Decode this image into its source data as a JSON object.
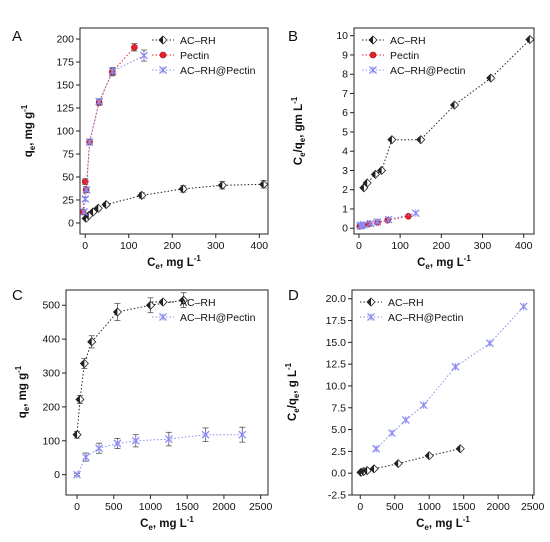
{
  "figure": {
    "panels": [
      {
        "label": "A",
        "chart_data": {
          "type": "scatter",
          "xlabel": "C",
          "xlabel_sub": "e",
          "xlabel_unit": ", mg L",
          "xlabel_sup": "-1",
          "ylabel": "q",
          "ylabel_sub": "e",
          "ylabel_unit": ", mg g",
          "ylabel_sup": "-1",
          "xlim": [
            -12,
            420
          ],
          "ylim": [
            -12,
            212
          ],
          "xticks": [
            0,
            100,
            200,
            300,
            400
          ],
          "yticks": [
            0,
            25,
            50,
            75,
            100,
            125,
            150,
            175,
            200
          ],
          "legend_position": "top-right",
          "series": [
            {
              "name": "AC–RH",
              "color": "#222222",
              "marker": "diamond-half",
              "x": [
                2,
                8,
                18,
                30,
                48,
                130,
                225,
                315,
                410
              ],
              "y": [
                5,
                8,
                12,
                16,
                20,
                30,
                37,
                41,
                42
              ],
              "err": [
                1,
                1,
                1.5,
                2,
                2,
                3,
                3.5,
                4,
                4
              ]
            },
            {
              "name": "Pectin",
              "color": "#e8202a",
              "marker": "circle",
              "x": [
                -5,
                0,
                2,
                10,
                32,
                62,
                113
              ],
              "y": [
                12,
                45,
                36,
                88,
                131,
                164,
                191
              ],
              "err": [
                2,
                3,
                3,
                3,
                3,
                4,
                4
              ]
            },
            {
              "name": "AC–RH@Pectin",
              "color": "#8b8cf0",
              "marker": "x",
              "x": [
                -3,
                0,
                3,
                10,
                32,
                63,
                135
              ],
              "y": [
                12,
                26,
                36,
                88,
                132,
                165,
                182
              ],
              "err": [
                2,
                2,
                2,
                3,
                3,
                4,
                6
              ]
            }
          ]
        }
      },
      {
        "label": "B",
        "chart_data": {
          "type": "scatter",
          "xlabel": "C",
          "xlabel_sub": "e",
          "xlabel_unit": ", mg L",
          "xlabel_sup": "-1",
          "ylabel": "C",
          "ylabel_sub": "e",
          "ylabel_mid": "/q",
          "ylabel_sub2": "e",
          "ylabel_unit": ", gm L",
          "ylabel_sup": "-1",
          "xlim": [
            -12,
            425
          ],
          "ylim": [
            -0.3,
            10.4
          ],
          "xticks": [
            0,
            100,
            200,
            300,
            400
          ],
          "yticks": [
            0,
            1,
            2,
            3,
            4,
            5,
            6,
            7,
            8,
            9,
            10
          ],
          "legend_position": "top-left",
          "series": [
            {
              "name": "AC–RH",
              "color": "#222222",
              "marker": "diamond-half",
              "x": [
                12,
                20,
                40,
                55,
                80,
                150,
                232,
                320,
                415
              ],
              "y": [
                2.1,
                2.35,
                2.8,
                3.0,
                4.6,
                4.6,
                6.4,
                7.8,
                9.8
              ]
            },
            {
              "name": "Pectin",
              "color": "#e8202a",
              "marker": "circle",
              "x": [
                2,
                5,
                10,
                25,
                45,
                70,
                120
              ],
              "y": [
                0.1,
                0.12,
                0.15,
                0.22,
                0.3,
                0.42,
                0.62
              ]
            },
            {
              "name": "AC–RH@Pectin",
              "color": "#8b8cf0",
              "marker": "x",
              "x": [
                3,
                6,
                12,
                28,
                45,
                72,
                138
              ],
              "y": [
                0.12,
                0.15,
                0.18,
                0.25,
                0.33,
                0.45,
                0.78
              ]
            }
          ]
        }
      },
      {
        "label": "C",
        "chart_data": {
          "type": "scatter",
          "xlabel": "C",
          "xlabel_sub": "e",
          "xlabel_unit": ", mg L",
          "xlabel_sup": "-1",
          "ylabel": "q",
          "ylabel_sub": "e",
          "ylabel_unit": ", mg g",
          "ylabel_sup": "-1",
          "xlim": [
            -150,
            2600
          ],
          "ylim": [
            -60,
            545
          ],
          "xticks": [
            0,
            500,
            1000,
            1500,
            2000,
            2500
          ],
          "yticks": [
            0,
            100,
            200,
            300,
            400,
            500
          ],
          "legend_position": "top-right",
          "series": [
            {
              "name": "AC–RH",
              "color": "#222222",
              "marker": "diamond-half",
              "x": [
                0,
                40,
                100,
                200,
                550,
                1000,
                1450
              ],
              "y": [
                118,
                222,
                328,
                392,
                480,
                500,
                515
              ],
              "err": [
                10,
                12,
                15,
                18,
                25,
                22,
                22
              ]
            },
            {
              "name": "AC–RH@Pectin",
              "color": "#8b8cf0",
              "marker": "x",
              "x": [
                0,
                120,
                300,
                550,
                800,
                1250,
                1750,
                2250
              ],
              "y": [
                0,
                52,
                78,
                92,
                100,
                105,
                118,
                118
              ],
              "err": [
                3,
                12,
                15,
                15,
                18,
                20,
                20,
                22
              ]
            }
          ]
        }
      },
      {
        "label": "D",
        "chart_data": {
          "type": "scatter",
          "xlabel": "C",
          "xlabel_sub": "e",
          "xlabel_unit": ", mg L",
          "xlabel_sup": "-1",
          "ylabel": "C",
          "ylabel_sub": "e",
          "ylabel_mid": "/q",
          "ylabel_sub2": "e",
          "ylabel_unit": ", g L",
          "ylabel_sup": "-1",
          "xlim": [
            -120,
            2520
          ],
          "ylim": [
            -2.5,
            21
          ],
          "xticks": [
            0,
            500,
            1000,
            1500,
            2000,
            2500
          ],
          "yticks": [
            -2.5,
            0,
            2.5,
            5,
            7.5,
            10,
            12.5,
            15,
            17.5,
            20
          ],
          "ytick_labels": [
            "-2.5",
            "0.0",
            "2.5",
            "5.0",
            "7.5",
            "10.0",
            "12.5",
            "15.0",
            "17.5",
            "20.0"
          ],
          "legend_position": "top-left",
          "series": [
            {
              "name": "AC–RH",
              "color": "#222222",
              "marker": "diamond-half",
              "x": [
                10,
                50,
                100,
                200,
                550,
                1000,
                1450
              ],
              "y": [
                0.1,
                0.2,
                0.3,
                0.5,
                1.1,
                2.0,
                2.8
              ]
            },
            {
              "name": "AC–RH@Pectin",
              "color": "#8b8cf0",
              "marker": "x",
              "x": [
                230,
                460,
                660,
                920,
                1380,
                1880,
                2370
              ],
              "y": [
                2.8,
                4.6,
                6.1,
                7.8,
                12.2,
                14.9,
                19.1
              ]
            }
          ]
        }
      }
    ]
  }
}
